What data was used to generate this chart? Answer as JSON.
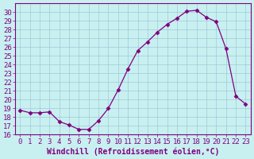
{
  "x": [
    0,
    1,
    2,
    3,
    4,
    5,
    6,
    7,
    8,
    9,
    10,
    11,
    12,
    13,
    14,
    15,
    16,
    17,
    18,
    19,
    20,
    21,
    22,
    23
  ],
  "y": [
    18.8,
    18.5,
    18.5,
    18.6,
    17.5,
    17.1,
    16.6,
    16.6,
    17.6,
    19.0,
    21.1,
    23.5,
    25.6,
    26.6,
    27.7,
    28.6,
    29.3,
    30.1,
    30.2,
    29.4,
    28.9,
    25.8,
    20.4,
    19.5
  ],
  "ylim": [
    16,
    31
  ],
  "xlim": [
    -0.5,
    23.5
  ],
  "yticks": [
    16,
    17,
    18,
    19,
    20,
    21,
    22,
    23,
    24,
    25,
    26,
    27,
    28,
    29,
    30
  ],
  "xticks": [
    0,
    1,
    2,
    3,
    4,
    5,
    6,
    7,
    8,
    9,
    10,
    11,
    12,
    13,
    14,
    15,
    16,
    17,
    18,
    19,
    20,
    21,
    22,
    23
  ],
  "line_color": "#800080",
  "marker": "D",
  "marker_size": 2.5,
  "bg_color": "#c8f0f0",
  "grid_color": "#a0c8d8",
  "font_color": "#800080",
  "xlabel": "Windchill (Refroidissement éolien,°C)",
  "xlabel_fontsize": 7,
  "tick_fontsize": 6.5
}
